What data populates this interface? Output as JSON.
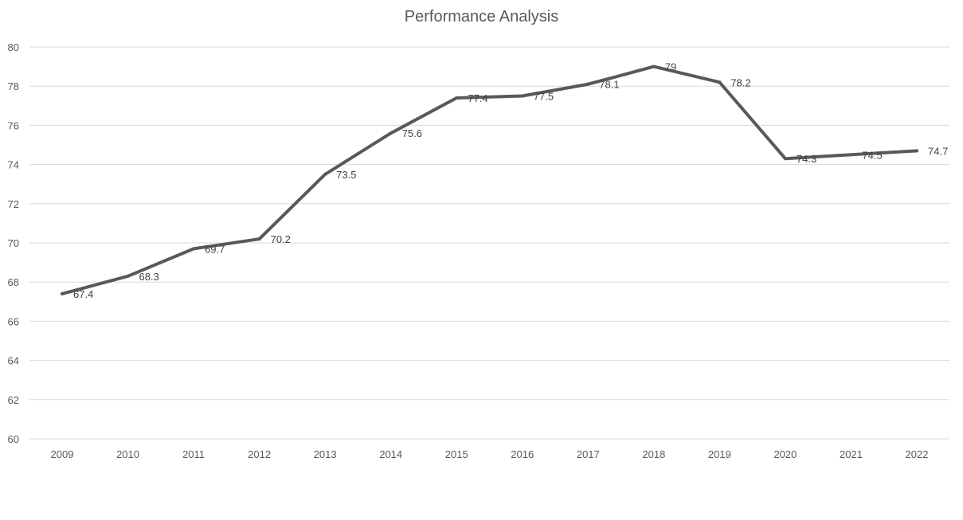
{
  "chart_data": {
    "type": "line",
    "title": "Performance Analysis",
    "xlabel": "",
    "ylabel": "",
    "categories": [
      "2009",
      "2010",
      "2011",
      "2012",
      "2013",
      "2014",
      "2015",
      "2016",
      "2017",
      "2018",
      "2019",
      "2020",
      "2021",
      "2022"
    ],
    "series": [
      {
        "values": [
          67.4,
          68.3,
          69.7,
          70.2,
          73.5,
          75.6,
          77.4,
          77.5,
          78.1,
          79,
          78.2,
          74.3,
          74.5,
          74.7
        ],
        "color": "#595959",
        "data_labels": [
          "67.4",
          "68.3",
          "69.7",
          "70.2",
          "73.5",
          "75.6",
          "77.4",
          "77.5",
          "78.1",
          "79",
          "78.2",
          "74.3",
          "74.5",
          "74.7"
        ]
      }
    ],
    "ylim": [
      60,
      80
    ],
    "yticks": [
      "60",
      "62",
      "64",
      "66",
      "68",
      "70",
      "72",
      "74",
      "76",
      "78",
      "80"
    ],
    "grid": true,
    "legend": "none",
    "gridline_color": "#d9d9d9",
    "text_color": "#595959"
  }
}
